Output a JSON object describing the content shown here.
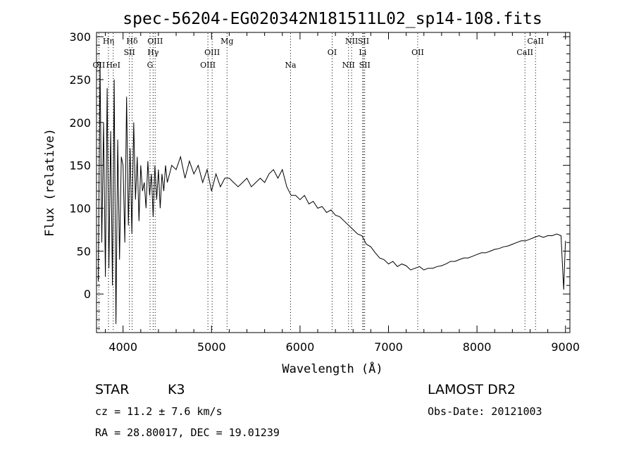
{
  "chart_data": {
    "type": "line",
    "title": "spec-56204-EG020342N181511L02_sp14-108.fits",
    "xlabel": "Wavelength (Å)",
    "ylabel": "Flux (relative)",
    "xlim": [
      3700,
      9050
    ],
    "ylim": [
      -45,
      305
    ],
    "xticks": [
      4000,
      5000,
      6000,
      7000,
      8000,
      9000
    ],
    "yticks": [
      0,
      50,
      100,
      150,
      200,
      250,
      300
    ],
    "grid": false,
    "series": [
      {
        "x": [
          3720,
          3740,
          3760,
          3780,
          3800,
          3820,
          3840,
          3860,
          3880,
          3900,
          3920,
          3940,
          3960,
          3980,
          4000,
          4020,
          4040,
          4060,
          4080,
          4100,
          4120,
          4140,
          4160,
          4180,
          4200,
          4220,
          4240,
          4260,
          4280,
          4300,
          4320,
          4340,
          4360,
          4380,
          4400,
          4420,
          4440,
          4460,
          4480,
          4500,
          4550,
          4600,
          4650,
          4700,
          4750,
          4800,
          4850,
          4900,
          4950,
          5000,
          5050,
          5100,
          5150,
          5200,
          5250,
          5300,
          5350,
          5400,
          5450,
          5500,
          5550,
          5600,
          5650,
          5700,
          5750,
          5800,
          5850,
          5900,
          5950,
          6000,
          6050,
          6100,
          6150,
          6200,
          6250,
          6300,
          6350,
          6400,
          6450,
          6500,
          6550,
          6600,
          6650,
          6700,
          6750,
          6800,
          6850,
          6900,
          6950,
          7000,
          7050,
          7100,
          7150,
          7200,
          7250,
          7300,
          7350,
          7400,
          7450,
          7500,
          7550,
          7600,
          7650,
          7700,
          7750,
          7800,
          7850,
          7900,
          7950,
          8000,
          8050,
          8100,
          8150,
          8200,
          8250,
          8300,
          8350,
          8400,
          8450,
          8500,
          8550,
          8600,
          8650,
          8700,
          8750,
          8800,
          8850,
          8900,
          8950,
          8980,
          9000
        ],
        "y": [
          15,
          270,
          60,
          200,
          20,
          240,
          30,
          190,
          10,
          250,
          -35,
          180,
          40,
          160,
          150,
          60,
          230,
          80,
          170,
          70,
          200,
          110,
          160,
          85,
          150,
          120,
          130,
          100,
          155,
          115,
          140,
          90,
          150,
          110,
          145,
          100,
          140,
          120,
          150,
          130,
          150,
          145,
          160,
          135,
          155,
          140,
          150,
          130,
          145,
          120,
          140,
          125,
          135,
          135,
          130,
          125,
          130,
          135,
          125,
          130,
          135,
          130,
          140,
          145,
          135,
          145,
          125,
          115,
          115,
          110,
          115,
          105,
          108,
          100,
          102,
          95,
          98,
          92,
          90,
          85,
          80,
          75,
          70,
          68,
          58,
          55,
          48,
          42,
          40,
          35,
          38,
          32,
          35,
          33,
          28,
          30,
          32,
          28,
          30,
          30,
          32,
          33,
          35,
          38,
          38,
          40,
          42,
          42,
          44,
          46,
          48,
          48,
          50,
          52,
          53,
          55,
          56,
          58,
          60,
          62,
          62,
          64,
          66,
          68,
          66,
          68,
          68,
          70,
          68,
          5,
          62
        ]
      }
    ],
    "lines": [
      {
        "label": "OII",
        "wave": 3727,
        "row": 3
      },
      {
        "label": "Hη",
        "wave": 3835,
        "row": 1
      },
      {
        "label": "HeI",
        "wave": 3889,
        "row": 3
      },
      {
        "label": "Hδ",
        "wave": 4102,
        "row": 1
      },
      {
        "label": "SII",
        "wave": 4072,
        "row": 2
      },
      {
        "label": "OIII",
        "wave": 4363,
        "row": 1
      },
      {
        "label": "Hγ",
        "wave": 4340,
        "row": 2
      },
      {
        "label": "G",
        "wave": 4305,
        "row": 3
      },
      {
        "label": "OIII",
        "wave": 5007,
        "row": 2
      },
      {
        "label": "OIII",
        "wave": 4959,
        "row": 3
      },
      {
        "label": "Mg",
        "wave": 5175,
        "row": 1
      },
      {
        "label": "Na",
        "wave": 5893,
        "row": 3
      },
      {
        "label": "OI",
        "wave": 6363,
        "row": 2
      },
      {
        "label": "NII",
        "wave": 6583,
        "row": 1
      },
      {
        "label": "SII",
        "wave": 6717,
        "row": 1
      },
      {
        "label": "Li",
        "wave": 6708,
        "row": 2
      },
      {
        "label": "NII",
        "wave": 6548,
        "row": 3
      },
      {
        "label": "SII",
        "wave": 6731,
        "row": 3
      },
      {
        "label": "OII",
        "wave": 7330,
        "row": 2
      },
      {
        "label": "CaII",
        "wave": 8662,
        "row": 1
      },
      {
        "label": "CaII",
        "wave": 8542,
        "row": 2
      }
    ]
  },
  "info": {
    "objtype": "STAR",
    "subclass": "K3",
    "survey": "LAMOST DR2",
    "cz": "cz = 11.2 ± 7.6 km/s",
    "obsdate": "Obs-Date: 20121003",
    "radec": "RA =  28.80017, DEC =  19.01239"
  }
}
